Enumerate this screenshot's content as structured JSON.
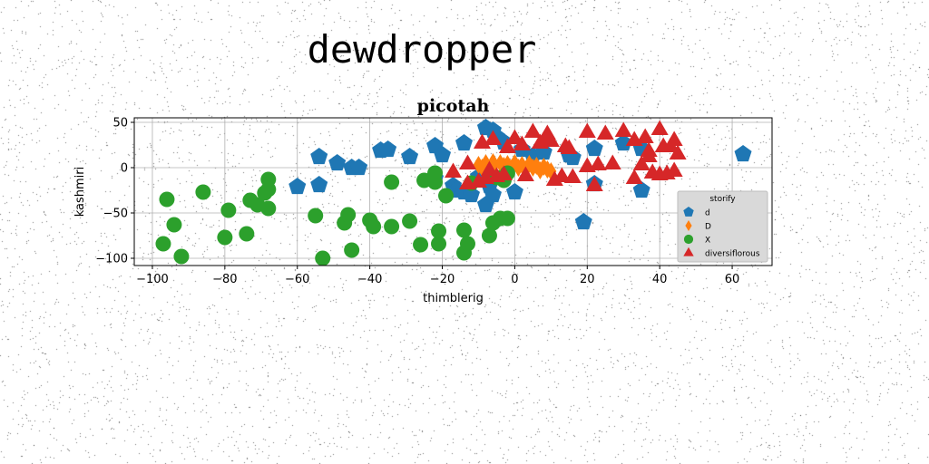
{
  "suptitle": "dewdropper",
  "chart_data": {
    "type": "scatter",
    "title": "picotah",
    "xlabel": "thimblerig",
    "ylabel": "kashmiri",
    "xlim": [
      -105,
      71
    ],
    "ylim": [
      -108,
      55
    ],
    "xticks": [
      -100,
      -80,
      -60,
      -40,
      -20,
      0,
      20,
      40,
      60
    ],
    "yticks": [
      -100,
      -50,
      0,
      50
    ],
    "xtick_labels": [
      "−100",
      "−80",
      "−60",
      "−40",
      "−20",
      "0",
      "20",
      "40",
      "60"
    ],
    "ytick_labels": [
      "−100",
      "−50",
      "0",
      "50"
    ],
    "grid": true,
    "legend": {
      "title": "storify",
      "position": "lower-right"
    },
    "series": [
      {
        "name": "d",
        "marker": "pentagon",
        "color": "#1f77b4",
        "points": [
          [
            -60,
            -21
          ],
          [
            -54,
            -19
          ],
          [
            -54,
            12
          ],
          [
            -49,
            5
          ],
          [
            -45,
            0
          ],
          [
            -43,
            0
          ],
          [
            -37,
            19
          ],
          [
            -35,
            20
          ],
          [
            -29,
            12
          ],
          [
            -22,
            24
          ],
          [
            -20,
            14
          ],
          [
            -22,
            -12
          ],
          [
            -17,
            -20
          ],
          [
            -16,
            -25
          ],
          [
            -14,
            -27
          ],
          [
            -12,
            -30
          ],
          [
            -14,
            27
          ],
          [
            -10,
            -10
          ],
          [
            -7,
            -20
          ],
          [
            -6,
            -30
          ],
          [
            -8,
            -41
          ],
          [
            -8,
            44
          ],
          [
            -6,
            41
          ],
          [
            -5,
            34
          ],
          [
            -3,
            28
          ],
          [
            0,
            -27
          ],
          [
            2,
            20
          ],
          [
            5,
            13
          ],
          [
            8,
            17
          ],
          [
            15,
            14
          ],
          [
            16,
            11
          ],
          [
            19,
            -60
          ],
          [
            22,
            -18
          ],
          [
            22,
            21
          ],
          [
            30,
            27
          ],
          [
            35,
            21
          ],
          [
            35,
            -25
          ],
          [
            63,
            15
          ]
        ]
      },
      {
        "name": "D",
        "marker": "diamond",
        "color": "#ff7f0e",
        "points": [
          [
            -10,
            3
          ],
          [
            -8,
            5
          ],
          [
            -6,
            6
          ],
          [
            -4,
            5
          ],
          [
            -2,
            4
          ],
          [
            0,
            5
          ],
          [
            2,
            3
          ],
          [
            4,
            4
          ],
          [
            6,
            2
          ],
          [
            8,
            1
          ],
          [
            9,
            -2
          ],
          [
            10,
            -4
          ],
          [
            -9,
            0
          ],
          [
            -6,
            1
          ],
          [
            -3,
            2
          ],
          [
            1,
            0
          ],
          [
            5,
            0
          ],
          [
            7,
            -3
          ],
          [
            3,
            -2
          ],
          [
            -1,
            -1
          ]
        ]
      },
      {
        "name": "X",
        "marker": "circle",
        "color": "#2ca02c",
        "points": [
          [
            -96,
            -35
          ],
          [
            -97,
            -84
          ],
          [
            -94,
            -63
          ],
          [
            -92,
            -98
          ],
          [
            -86,
            -27
          ],
          [
            -79,
            -47
          ],
          [
            -80,
            -77
          ],
          [
            -74,
            -73
          ],
          [
            -73,
            -36
          ],
          [
            -71,
            -41
          ],
          [
            -69,
            -28
          ],
          [
            -68,
            -24
          ],
          [
            -68,
            -13
          ],
          [
            -68,
            -45
          ],
          [
            -55,
            -53
          ],
          [
            -53,
            -100
          ],
          [
            -47,
            -61
          ],
          [
            -46,
            -52
          ],
          [
            -45,
            -91
          ],
          [
            -40,
            -58
          ],
          [
            -39,
            -65
          ],
          [
            -34,
            -65
          ],
          [
            -34,
            -16
          ],
          [
            -29,
            -59
          ],
          [
            -25,
            -14
          ],
          [
            -26,
            -85
          ],
          [
            -22,
            -6
          ],
          [
            -22,
            -16
          ],
          [
            -21,
            -84
          ],
          [
            -21,
            -70
          ],
          [
            -19,
            -31
          ],
          [
            -14,
            -94
          ],
          [
            -14,
            -69
          ],
          [
            -13,
            -84
          ],
          [
            -12,
            -17
          ],
          [
            -7,
            -75
          ],
          [
            -6,
            -61
          ],
          [
            -5,
            -11
          ],
          [
            -4,
            -56
          ],
          [
            -3,
            -14
          ],
          [
            -2,
            -6
          ],
          [
            -2,
            -56
          ]
        ]
      },
      {
        "name": "diversiflorous",
        "marker": "triangle",
        "color": "#d62728",
        "points": [
          [
            -17,
            -5
          ],
          [
            -13,
            4
          ],
          [
            -13,
            -18
          ],
          [
            -10,
            -16
          ],
          [
            -9,
            27
          ],
          [
            -8,
            -12
          ],
          [
            -7,
            -3
          ],
          [
            -6,
            31
          ],
          [
            -5,
            -10
          ],
          [
            -3,
            -8
          ],
          [
            -2,
            22
          ],
          [
            0,
            32
          ],
          [
            2,
            25
          ],
          [
            3,
            -9
          ],
          [
            5,
            39
          ],
          [
            7,
            27
          ],
          [
            8,
            30
          ],
          [
            9,
            37
          ],
          [
            10,
            29
          ],
          [
            11,
            -14
          ],
          [
            13,
            -10
          ],
          [
            14,
            23
          ],
          [
            15,
            21
          ],
          [
            16,
            -11
          ],
          [
            20,
            39
          ],
          [
            20,
            1
          ],
          [
            22,
            -20
          ],
          [
            23,
            3
          ],
          [
            25,
            37
          ],
          [
            27,
            4
          ],
          [
            30,
            40
          ],
          [
            33,
            30
          ],
          [
            33,
            -12
          ],
          [
            35,
            3
          ],
          [
            36,
            33
          ],
          [
            37,
            12
          ],
          [
            37,
            18
          ],
          [
            38,
            -6
          ],
          [
            40,
            42
          ],
          [
            40,
            -8
          ],
          [
            41,
            23
          ],
          [
            42,
            -7
          ],
          [
            43,
            23
          ],
          [
            44,
            -4
          ],
          [
            44,
            30
          ],
          [
            45,
            15
          ]
        ]
      }
    ]
  }
}
